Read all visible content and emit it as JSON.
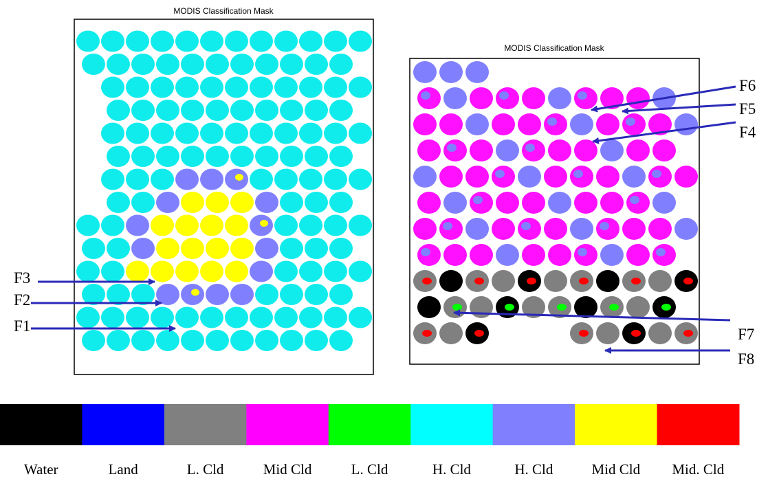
{
  "panels": [
    {
      "title": "MODIS Classification Mask"
    },
    {
      "title": "MODIS Classification Mask"
    }
  ],
  "arrows": [
    {
      "label": "F3"
    },
    {
      "label": "F2"
    },
    {
      "label": "F1"
    },
    {
      "label": "F6"
    },
    {
      "label": "F5"
    },
    {
      "label": "F4"
    },
    {
      "label": "F7"
    },
    {
      "label": "F8"
    }
  ],
  "legend": [
    {
      "label": "Water",
      "color": "#000000"
    },
    {
      "label": "Land",
      "color": "#0000ff"
    },
    {
      "label": "L. Cld",
      "color": "#808080"
    },
    {
      "label": "Mid Cld",
      "color": "#ff00ff"
    },
    {
      "label": "L. Cld",
      "color": "#00ff00"
    },
    {
      "label": "H. Cld",
      "color": "#00ffff"
    },
    {
      "label": "H. Cld",
      "color": "#8080ff"
    },
    {
      "label": "Mid Cld",
      "color": "#ffff00"
    },
    {
      "label": "Mid. Cld",
      "color": "#ff0000"
    }
  ]
}
